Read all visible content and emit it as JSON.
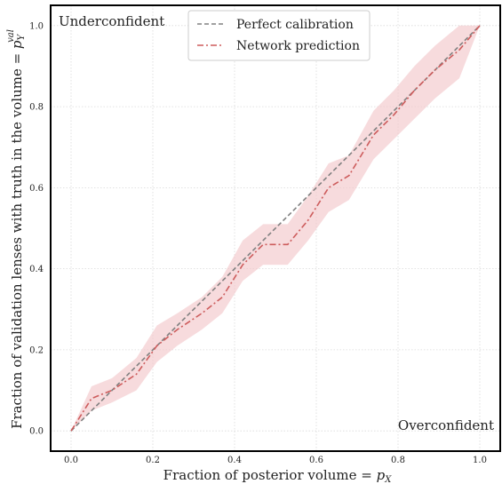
{
  "chart_data": {
    "type": "line",
    "xlabel_main": "Fraction of posterior volume = ",
    "xlabel_sym": "p",
    "xlabel_sub": "X",
    "ylabel_main": "Fraction of validation lenses with truth in the volume = ",
    "ylabel_sym": "p",
    "ylabel_sub": "Y",
    "ylabel_sup": "val",
    "xlim": [
      -0.05,
      1.05
    ],
    "ylim": [
      -0.05,
      1.05
    ],
    "xticks": [
      "0.0",
      "0.2",
      "0.4",
      "0.6",
      "0.8",
      "1.0"
    ],
    "yticks": [
      "0.0",
      "0.2",
      "0.4",
      "0.6",
      "0.8",
      "1.0"
    ],
    "tick_values": [
      0.0,
      0.2,
      0.4,
      0.6,
      0.8,
      1.0
    ],
    "grid": true,
    "legend_position": "top-center",
    "annotations": {
      "top_left": "Underconfident",
      "bottom_right": "Overconfident"
    },
    "series": [
      {
        "name": "Perfect calibration",
        "style": "dashed",
        "color": "#808080",
        "x": [
          0.0,
          1.0
        ],
        "y": [
          0.0,
          1.0
        ]
      },
      {
        "name": "Network prediction",
        "style": "dashdot",
        "color": "#cd5c5c",
        "x": [
          0.0,
          0.05,
          0.1,
          0.16,
          0.21,
          0.26,
          0.32,
          0.37,
          0.42,
          0.47,
          0.53,
          0.58,
          0.63,
          0.68,
          0.74,
          0.79,
          0.84,
          0.89,
          0.95,
          1.0
        ],
        "y": [
          0.0,
          0.08,
          0.1,
          0.14,
          0.21,
          0.25,
          0.29,
          0.33,
          0.41,
          0.46,
          0.46,
          0.52,
          0.6,
          0.63,
          0.73,
          0.78,
          0.84,
          0.89,
          0.94,
          1.0
        ]
      }
    ],
    "band": {
      "color": "#f3c7cb",
      "x": [
        0.0,
        0.05,
        0.1,
        0.16,
        0.21,
        0.26,
        0.32,
        0.37,
        0.42,
        0.47,
        0.53,
        0.58,
        0.63,
        0.68,
        0.74,
        0.79,
        0.84,
        0.89,
        0.95,
        1.0
      ],
      "lower": [
        0.0,
        0.05,
        0.07,
        0.1,
        0.17,
        0.21,
        0.25,
        0.29,
        0.37,
        0.41,
        0.41,
        0.47,
        0.54,
        0.57,
        0.67,
        0.72,
        0.77,
        0.82,
        0.87,
        1.0
      ],
      "upper": [
        0.0,
        0.11,
        0.13,
        0.18,
        0.26,
        0.29,
        0.33,
        0.38,
        0.47,
        0.51,
        0.51,
        0.58,
        0.66,
        0.68,
        0.79,
        0.84,
        0.9,
        0.95,
        1.0,
        1.0
      ]
    }
  }
}
